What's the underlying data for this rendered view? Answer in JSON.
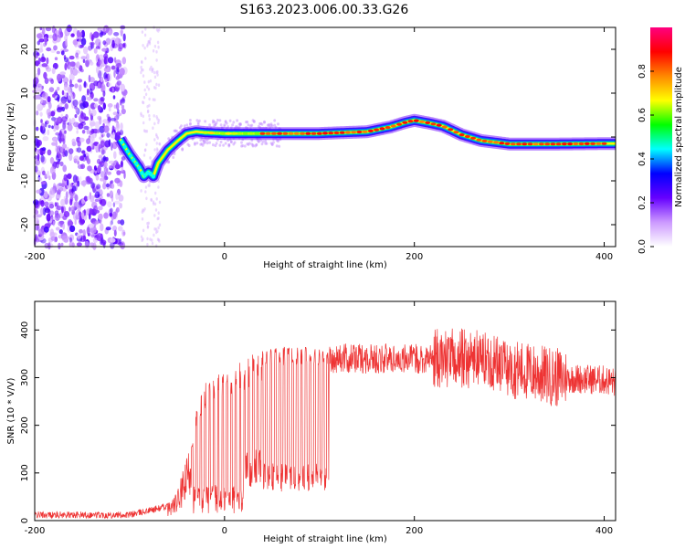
{
  "title": "S163.2023.006.00.33.G26",
  "chart_data": [
    {
      "type": "heatmap",
      "xlabel": "Height of straight line (km)",
      "ylabel": "Frequency (Hz)",
      "xlim": [
        -200,
        412
      ],
      "ylim": [
        -25,
        25
      ],
      "xticks": [
        "-200",
        "0",
        "200",
        "400"
      ],
      "yticks": [
        "-20",
        "-10",
        "0",
        "10",
        "20"
      ],
      "colorbar": {
        "label": "Normalized spectral amplitude",
        "range": [
          0,
          1
        ],
        "ticks": [
          "0.0",
          "0.2",
          "0.4",
          "0.6",
          "0.8"
        ],
        "colors": [
          "#ffffff",
          "#cc99ff",
          "#6600ff",
          "#0000ff",
          "#00ffff",
          "#00ff00",
          "#ffff00",
          "#ff8800",
          "#ff0000",
          "#ff0080"
        ]
      },
      "ridge": {
        "x": [
          -110,
          -100,
          -90,
          -85,
          -80,
          -75,
          -70,
          -60,
          -50,
          -40,
          -30,
          -20,
          0,
          50,
          100,
          150,
          175,
          190,
          200,
          215,
          230,
          250,
          270,
          300,
          350,
          412
        ],
        "y": [
          -0.5,
          -4,
          -7,
          -9,
          -8,
          -9,
          -6,
          -3,
          -1,
          0.8,
          1.2,
          1.0,
          0.8,
          0.8,
          0.8,
          1.2,
          2.3,
          3.3,
          3.8,
          3.2,
          2.5,
          0.5,
          -0.8,
          -1.6,
          -1.6,
          -1.5
        ]
      }
    },
    {
      "type": "line",
      "xlabel": "Height of straight line (km)",
      "ylabel": "SNR (10 * V/V)",
      "xlim": [
        -200,
        412
      ],
      "ylim": [
        0,
        460
      ],
      "xticks": [
        "-200",
        "0",
        "200",
        "400"
      ],
      "yticks": [
        "0",
        "100",
        "200",
        "300",
        "400"
      ],
      "line_color": "#ee3333",
      "envelope": {
        "x": [
          -200,
          -100,
          -60,
          -50,
          -40,
          -30,
          -20,
          0,
          20,
          40,
          60,
          100,
          110,
          150,
          200,
          250,
          275,
          300,
          350,
          400,
          412
        ],
        "y": [
          12,
          12,
          30,
          50,
          110,
          220,
          280,
          300,
          320,
          345,
          345,
          345,
          340,
          340,
          340,
          340,
          340,
          320,
          300,
          295,
          290
        ]
      }
    }
  ]
}
